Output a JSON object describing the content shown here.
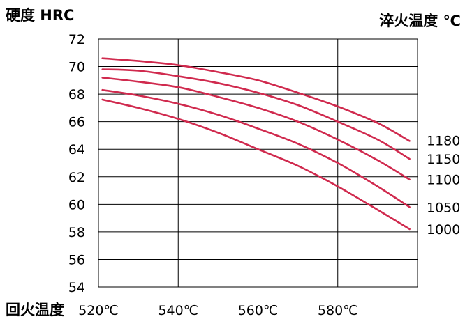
{
  "chart_data": {
    "type": "line",
    "ylabel": "硬度 HRC",
    "xlabel": "回火温度",
    "legend_title": "淬火温度 ℃",
    "legend_placement": "right",
    "grid": true,
    "xlim": [
      520,
      600
    ],
    "ylim": [
      54,
      72
    ],
    "x_ticks": [
      520,
      540,
      560,
      580
    ],
    "x_tick_labels": [
      "520℃",
      "540℃",
      "560℃",
      "580℃"
    ],
    "y_ticks": [
      54,
      56,
      58,
      60,
      62,
      64,
      66,
      68,
      70,
      72
    ],
    "y_tick_labels": [
      "54",
      "56",
      "58",
      "60",
      "62",
      "64",
      "66",
      "68",
      "70",
      "72"
    ],
    "line_color": "#d02a4e",
    "series": [
      {
        "name": "1180",
        "x": [
          521,
          530,
          540,
          550,
          560,
          570,
          580,
          590,
          598
        ],
        "y": [
          70.6,
          70.4,
          70.1,
          69.6,
          69.0,
          68.1,
          67.1,
          65.9,
          64.6
        ]
      },
      {
        "name": "1150",
        "x": [
          521,
          530,
          540,
          550,
          560,
          570,
          580,
          590,
          598
        ],
        "y": [
          69.8,
          69.7,
          69.3,
          68.8,
          68.1,
          67.2,
          66.0,
          64.7,
          63.3
        ]
      },
      {
        "name": "1100",
        "x": [
          521,
          530,
          540,
          550,
          560,
          570,
          580,
          590,
          598
        ],
        "y": [
          69.2,
          68.9,
          68.5,
          67.8,
          67.0,
          66.0,
          64.7,
          63.2,
          61.8
        ]
      },
      {
        "name": "1050",
        "x": [
          521,
          530,
          540,
          550,
          560,
          570,
          580,
          590,
          598
        ],
        "y": [
          68.3,
          67.9,
          67.3,
          66.5,
          65.5,
          64.4,
          63.0,
          61.3,
          59.8
        ]
      },
      {
        "name": "1000",
        "x": [
          521,
          530,
          540,
          550,
          560,
          570,
          580,
          590,
          598
        ],
        "y": [
          67.6,
          67.0,
          66.2,
          65.2,
          64.0,
          62.8,
          61.3,
          59.6,
          58.2
        ]
      }
    ]
  }
}
